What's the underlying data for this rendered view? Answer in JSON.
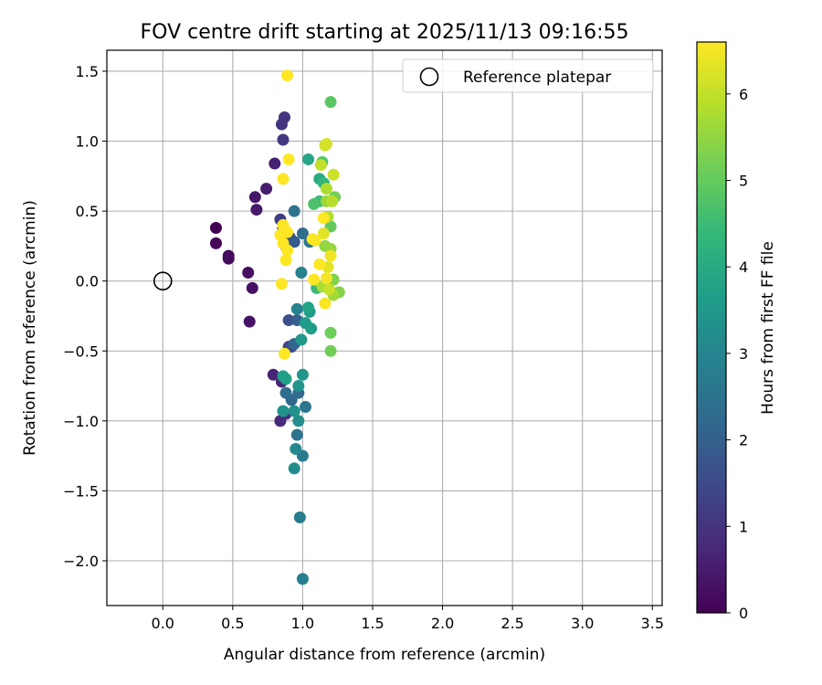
{
  "chart_data": {
    "type": "scatter",
    "title": "FOV centre drift starting at 2025/11/13 09:16:55",
    "xlabel": "Angular distance from reference (arcmin)",
    "ylabel": "Rotation from reference (arcmin)",
    "xlim": [
      -0.4,
      3.57
    ],
    "ylim": [
      -2.32,
      1.65
    ],
    "xticks": [
      0.0,
      0.5,
      1.0,
      1.5,
      2.0,
      2.5,
      3.0,
      3.5
    ],
    "xtick_labels": [
      "0.0",
      "0.5",
      "1.0",
      "1.5",
      "2.0",
      "2.5",
      "3.0",
      "3.5"
    ],
    "yticks": [
      1.5,
      1.0,
      0.5,
      0.0,
      -0.5,
      -1.0,
      -1.5,
      -2.0
    ],
    "ytick_labels": [
      "1.5",
      "1.0",
      "0.5",
      "0.0",
      "−0.5",
      "−1.0",
      "−1.5",
      "−2.0"
    ],
    "grid": true,
    "legend": {
      "position": "top-right",
      "entries": [
        "Reference platepar"
      ]
    },
    "reference_point": {
      "x": 0.0,
      "y": 0.0,
      "label": "Reference platepar"
    },
    "colorbar": {
      "label": "Hours from first FF file",
      "range": [
        0,
        6.6
      ],
      "ticks": [
        0,
        1,
        2,
        3,
        4,
        5,
        6
      ],
      "tick_labels": [
        "0",
        "1",
        "2",
        "3",
        "4",
        "5",
        "6"
      ],
      "colormap": "viridis",
      "colormap_stops": [
        "#440154",
        "#482878",
        "#3e4989",
        "#31688e",
        "#26828e",
        "#1f9e89",
        "#35b779",
        "#6ece58",
        "#b5de2b",
        "#fde725"
      ]
    },
    "points": [
      {
        "x": 0.38,
        "y": 0.38,
        "t": 0.05
      },
      {
        "x": 0.38,
        "y": 0.27,
        "t": 0.1
      },
      {
        "x": 0.47,
        "y": 0.18,
        "t": 0.15
      },
      {
        "x": 0.47,
        "y": 0.16,
        "t": 0.2
      },
      {
        "x": 0.61,
        "y": 0.06,
        "t": 0.25
      },
      {
        "x": 0.64,
        "y": -0.05,
        "t": 0.3
      },
      {
        "x": 0.62,
        "y": -0.29,
        "t": 0.35
      },
      {
        "x": 0.66,
        "y": 0.6,
        "t": 0.4
      },
      {
        "x": 0.67,
        "y": 0.51,
        "t": 0.45
      },
      {
        "x": 0.74,
        "y": 0.66,
        "t": 0.5
      },
      {
        "x": 0.8,
        "y": 0.84,
        "t": 0.6
      },
      {
        "x": 0.79,
        "y": -0.67,
        "t": 0.65
      },
      {
        "x": 0.85,
        "y": -0.72,
        "t": 0.7
      },
      {
        "x": 0.84,
        "y": -1.0,
        "t": 0.8
      },
      {
        "x": 0.88,
        "y": -0.95,
        "t": 0.9
      },
      {
        "x": 0.87,
        "y": 1.17,
        "t": 1.0
      },
      {
        "x": 0.85,
        "y": 1.12,
        "t": 1.0
      },
      {
        "x": 0.86,
        "y": 1.01,
        "t": 1.1
      },
      {
        "x": 0.84,
        "y": 0.44,
        "t": 1.2
      },
      {
        "x": 0.86,
        "y": 0.38,
        "t": 1.25
      },
      {
        "x": 0.9,
        "y": -0.47,
        "t": 1.4
      },
      {
        "x": 0.92,
        "y": -0.47,
        "t": 1.5
      },
      {
        "x": 0.9,
        "y": -0.28,
        "t": 1.6
      },
      {
        "x": 0.91,
        "y": 0.31,
        "t": 1.7
      },
      {
        "x": 0.88,
        "y": 0.25,
        "t": 1.8
      },
      {
        "x": 0.94,
        "y": 0.28,
        "t": 1.85
      },
      {
        "x": 0.96,
        "y": -0.28,
        "t": 2.0
      },
      {
        "x": 0.94,
        "y": -0.45,
        "t": 2.1
      },
      {
        "x": 0.92,
        "y": -0.85,
        "t": 2.2
      },
      {
        "x": 0.97,
        "y": -0.8,
        "t": 2.3
      },
      {
        "x": 0.88,
        "y": -0.8,
        "t": 2.4
      },
      {
        "x": 0.96,
        "y": -1.1,
        "t": 2.5
      },
      {
        "x": 1.02,
        "y": -0.9,
        "t": 2.6
      },
      {
        "x": 0.94,
        "y": 0.5,
        "t": 2.55
      },
      {
        "x": 1.0,
        "y": -1.25,
        "t": 2.7
      },
      {
        "x": 0.98,
        "y": -1.69,
        "t": 2.75
      },
      {
        "x": 1.0,
        "y": -2.13,
        "t": 2.85
      },
      {
        "x": 0.99,
        "y": 0.06,
        "t": 2.9
      },
      {
        "x": 0.96,
        "y": -0.2,
        "t": 2.95
      },
      {
        "x": 1.0,
        "y": 0.34,
        "t": 2.3
      },
      {
        "x": 1.05,
        "y": 0.28,
        "t": 2.65
      },
      {
        "x": 0.95,
        "y": -1.2,
        "t": 3.1
      },
      {
        "x": 0.94,
        "y": -1.34,
        "t": 3.2
      },
      {
        "x": 0.97,
        "y": -1.0,
        "t": 3.25
      },
      {
        "x": 0.94,
        "y": -0.93,
        "t": 3.3
      },
      {
        "x": 0.86,
        "y": -0.93,
        "t": 3.35
      },
      {
        "x": 0.97,
        "y": -0.75,
        "t": 3.4
      },
      {
        "x": 1.0,
        "y": -0.67,
        "t": 3.45
      },
      {
        "x": 0.99,
        "y": -0.42,
        "t": 3.5
      },
      {
        "x": 1.02,
        "y": -0.3,
        "t": 3.55
      },
      {
        "x": 1.05,
        "y": -0.22,
        "t": 3.6
      },
      {
        "x": 1.06,
        "y": -0.34,
        "t": 3.65
      },
      {
        "x": 0.86,
        "y": -0.68,
        "t": 3.7
      },
      {
        "x": 0.88,
        "y": -0.7,
        "t": 3.75
      },
      {
        "x": 1.04,
        "y": -0.19,
        "t": 3.8
      },
      {
        "x": 1.04,
        "y": 0.87,
        "t": 3.9
      },
      {
        "x": 1.12,
        "y": 0.73,
        "t": 4.0
      },
      {
        "x": 1.15,
        "y": 0.7,
        "t": 4.3
      },
      {
        "x": 1.12,
        "y": 0.57,
        "t": 4.5
      },
      {
        "x": 1.1,
        "y": -0.05,
        "t": 4.4
      },
      {
        "x": 1.08,
        "y": 0.55,
        "t": 4.7
      },
      {
        "x": 1.14,
        "y": 0.85,
        "t": 4.8
      },
      {
        "x": 1.2,
        "y": 1.28,
        "t": 4.9
      },
      {
        "x": 1.2,
        "y": 0.39,
        "t": 5.0
      },
      {
        "x": 1.2,
        "y": -0.37,
        "t": 5.1
      },
      {
        "x": 1.2,
        "y": -0.5,
        "t": 5.15
      },
      {
        "x": 1.23,
        "y": 0.6,
        "t": 5.2
      },
      {
        "x": 1.22,
        "y": 0.01,
        "t": 5.3
      },
      {
        "x": 1.26,
        "y": -0.08,
        "t": 5.35
      },
      {
        "x": 1.16,
        "y": 0.25,
        "t": 5.5
      },
      {
        "x": 1.2,
        "y": 0.23,
        "t": 5.55
      },
      {
        "x": 1.17,
        "y": 0.57,
        "t": 5.6
      },
      {
        "x": 1.22,
        "y": -0.1,
        "t": 5.65
      },
      {
        "x": 1.14,
        "y": -0.04,
        "t": 5.75
      },
      {
        "x": 1.17,
        "y": 0.66,
        "t": 5.8
      },
      {
        "x": 1.18,
        "y": 0.46,
        "t": 5.85
      },
      {
        "x": 1.21,
        "y": 0.57,
        "t": 5.9
      },
      {
        "x": 1.13,
        "y": 0.83,
        "t": 6.0
      },
      {
        "x": 1.19,
        "y": -0.06,
        "t": 6.05
      },
      {
        "x": 1.22,
        "y": 0.76,
        "t": 6.1
      },
      {
        "x": 1.17,
        "y": 0.98,
        "t": 6.15
      },
      {
        "x": 1.16,
        "y": 0.97,
        "t": 6.2
      },
      {
        "x": 1.15,
        "y": 0.34,
        "t": 6.3
      },
      {
        "x": 1.18,
        "y": 0.1,
        "t": 6.35
      },
      {
        "x": 1.2,
        "y": 0.18,
        "t": 6.45
      },
      {
        "x": 1.17,
        "y": 0.02,
        "t": 6.5
      },
      {
        "x": 1.16,
        "y": -0.16,
        "t": 6.55
      },
      {
        "x": 1.09,
        "y": 0.29,
        "t": 6.55
      },
      {
        "x": 1.08,
        "y": 0.01,
        "t": 6.6
      },
      {
        "x": 1.12,
        "y": 0.12,
        "t": 6.6
      },
      {
        "x": 1.15,
        "y": 0.45,
        "t": 6.6
      },
      {
        "x": 0.89,
        "y": 1.47,
        "t": 6.6
      },
      {
        "x": 0.9,
        "y": 0.87,
        "t": 6.6
      },
      {
        "x": 0.86,
        "y": 0.73,
        "t": 6.6
      },
      {
        "x": 0.86,
        "y": 0.4,
        "t": 6.6
      },
      {
        "x": 0.89,
        "y": 0.35,
        "t": 6.6
      },
      {
        "x": 0.84,
        "y": 0.33,
        "t": 6.6
      },
      {
        "x": 0.86,
        "y": 0.27,
        "t": 6.6
      },
      {
        "x": 0.89,
        "y": 0.22,
        "t": 6.6
      },
      {
        "x": 0.88,
        "y": 0.15,
        "t": 6.6
      },
      {
        "x": 0.85,
        "y": -0.02,
        "t": 6.6
      },
      {
        "x": 0.87,
        "y": -0.52,
        "t": 6.6
      },
      {
        "x": 1.07,
        "y": 0.3,
        "t": 6.6
      }
    ]
  }
}
